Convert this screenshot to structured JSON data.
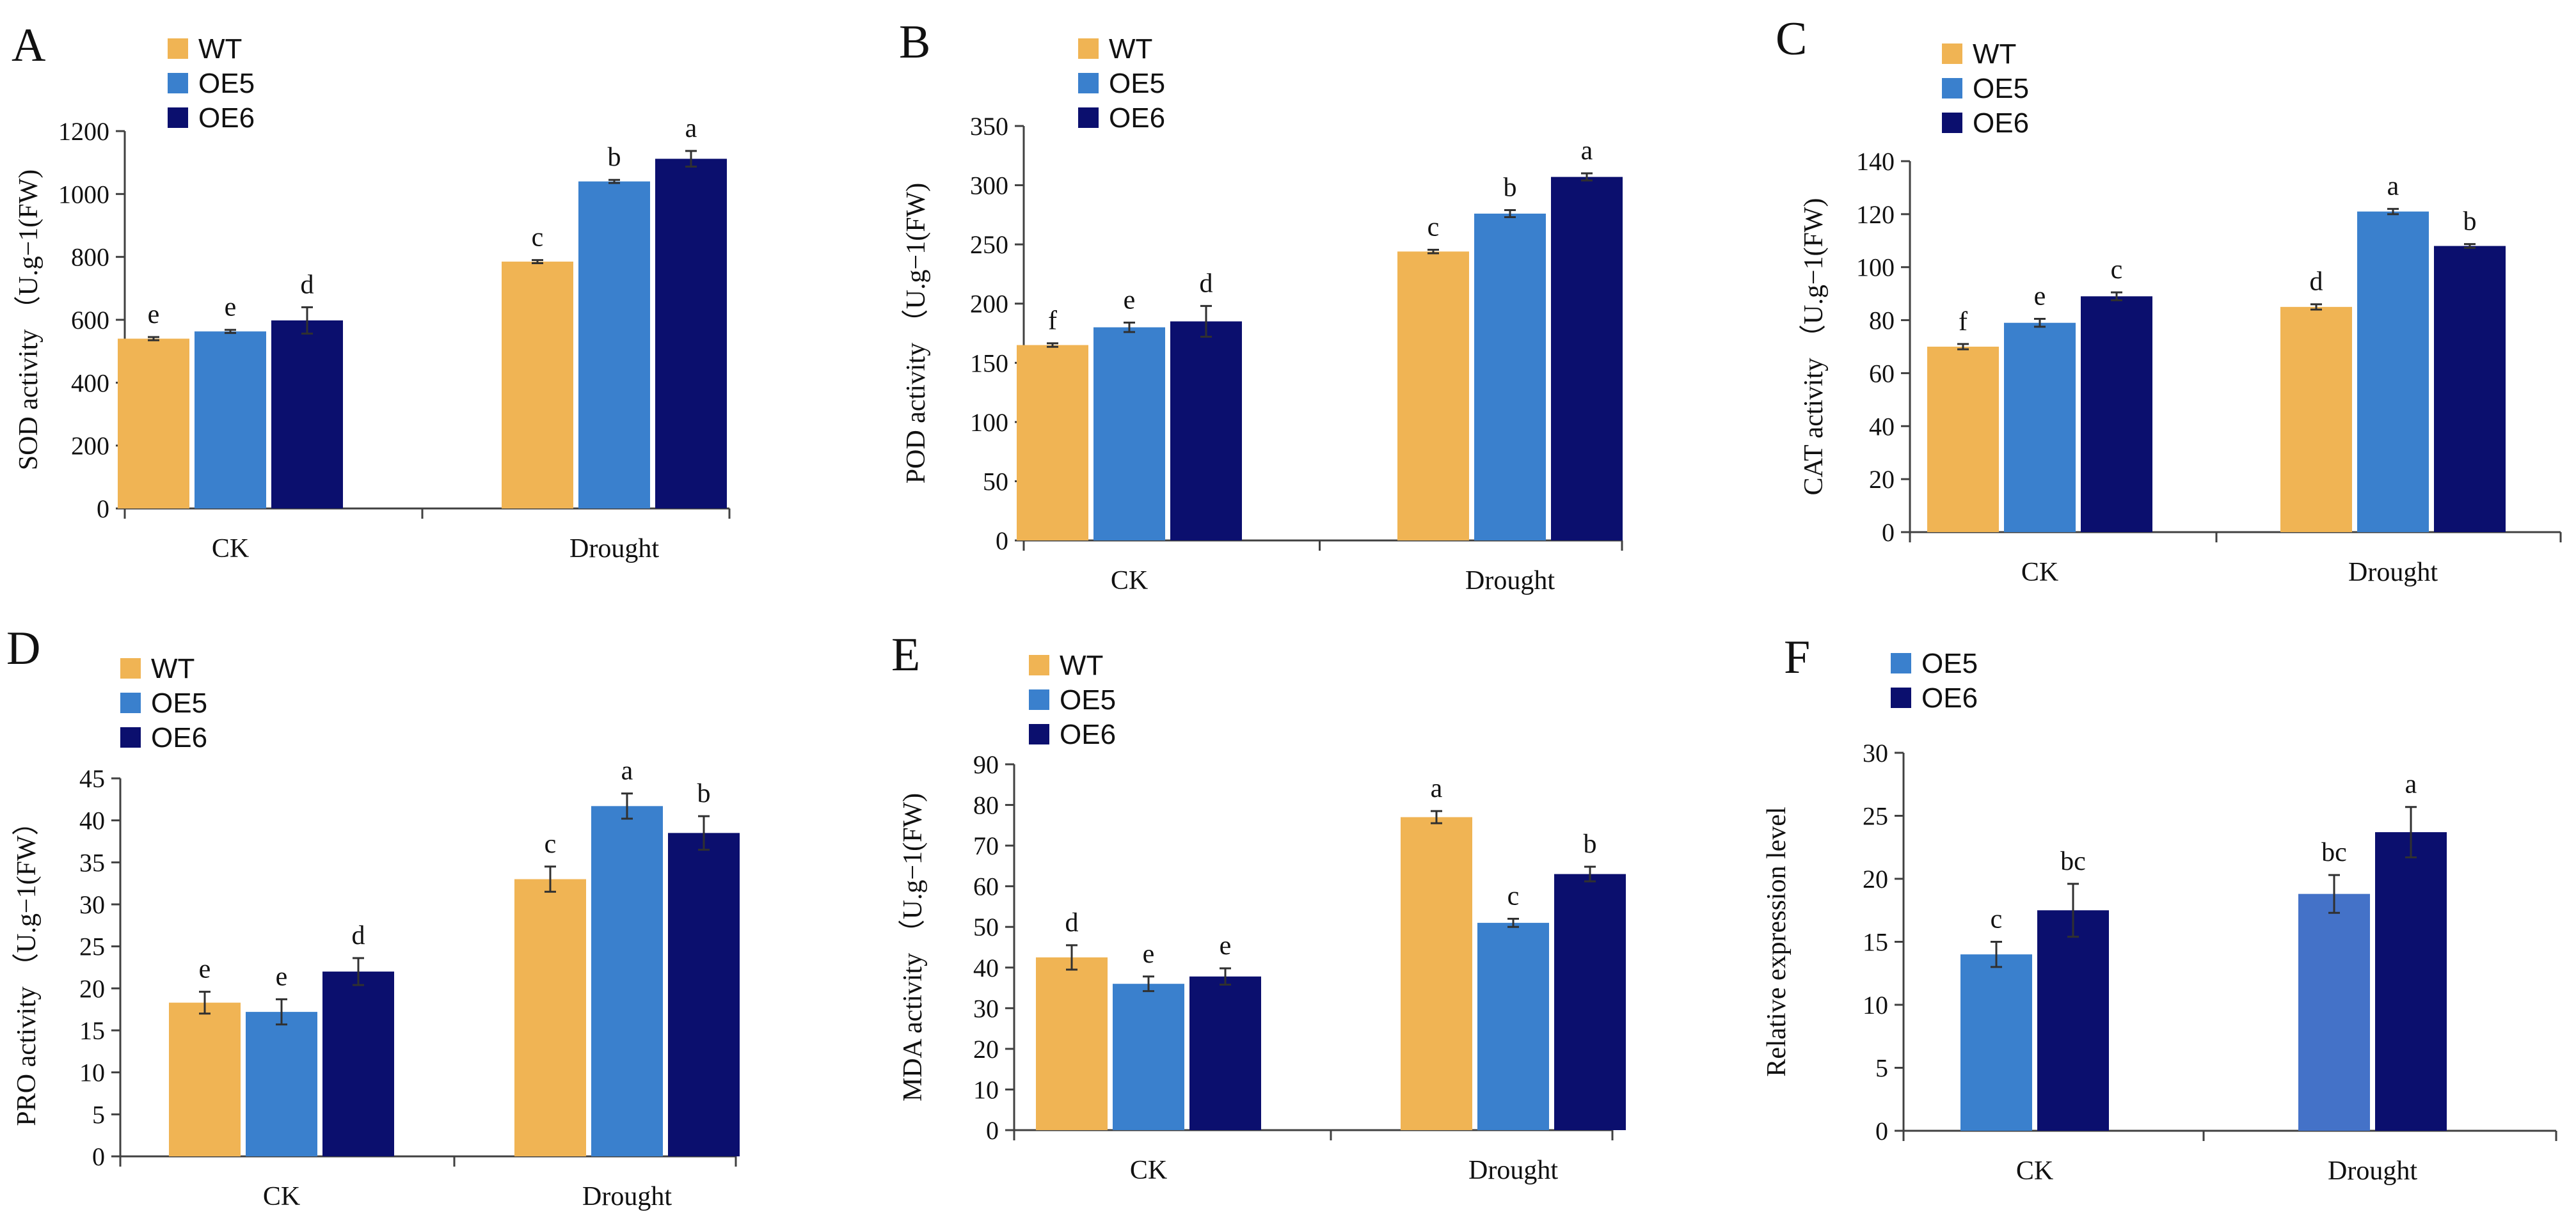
{
  "colors": {
    "WT": "#F0B454",
    "OE5": "#3A80CD",
    "OE6": "#0B0F6E",
    "OE5_F_drought": "#4472C8",
    "axis": "#404040",
    "error": "#303030"
  },
  "chart_data": [
    {
      "panel": "A",
      "type": "bar",
      "ylabel": "SOD activity （U.g−1(FW)",
      "ylim": [
        0,
        1200
      ],
      "ytick_step": 200,
      "categories": [
        "CK",
        "Drought"
      ],
      "series": [
        {
          "name": "WT",
          "values": [
            540,
            785
          ],
          "errors": [
            5,
            5
          ],
          "labels": [
            "e",
            "c"
          ]
        },
        {
          "name": "OE5",
          "values": [
            563,
            1040
          ],
          "errors": [
            5,
            5
          ],
          "labels": [
            "e",
            "b"
          ]
        },
        {
          "name": "OE6",
          "values": [
            598,
            1112
          ],
          "errors": [
            42,
            25
          ],
          "labels": [
            "d",
            "a"
          ]
        }
      ],
      "legend": [
        "WT",
        "OE5",
        "OE6"
      ]
    },
    {
      "panel": "B",
      "type": "bar",
      "ylabel": "POD activity （U.g−1(FW)",
      "ylim": [
        0,
        350
      ],
      "ytick_step": 50,
      "categories": [
        "CK",
        "Drought"
      ],
      "series": [
        {
          "name": "WT",
          "values": [
            165,
            244
          ],
          "errors": [
            1.5,
            1.5
          ],
          "labels": [
            "f",
            "c"
          ]
        },
        {
          "name": "OE5",
          "values": [
            180,
            276
          ],
          "errors": [
            4,
            3
          ],
          "labels": [
            "e",
            "b"
          ]
        },
        {
          "name": "OE6",
          "values": [
            185,
            307
          ],
          "errors": [
            13,
            3
          ],
          "labels": [
            "d",
            "a"
          ]
        }
      ],
      "legend": [
        "WT",
        "OE5",
        "OE6"
      ]
    },
    {
      "panel": "C",
      "type": "bar",
      "ylabel": "CAT activity （U.g−1(FW)",
      "ylim": [
        0,
        140
      ],
      "ytick_step": 20,
      "categories": [
        "CK",
        "Drought"
      ],
      "series": [
        {
          "name": "WT",
          "values": [
            70,
            85
          ],
          "errors": [
            1,
            1
          ],
          "labels": [
            "f",
            "d"
          ]
        },
        {
          "name": "OE5",
          "values": [
            79,
            121
          ],
          "errors": [
            1.5,
            1
          ],
          "labels": [
            "e",
            "a"
          ]
        },
        {
          "name": "OE6",
          "values": [
            89,
            108
          ],
          "errors": [
            1.5,
            0.7
          ],
          "labels": [
            "c",
            "b"
          ]
        }
      ],
      "legend": [
        "WT",
        "OE5",
        "OE6"
      ]
    },
    {
      "panel": "D",
      "type": "bar",
      "ylabel": "PRO activity （U.g−1(FW）",
      "ylim": [
        0,
        45
      ],
      "ytick_step": 5,
      "categories": [
        "CK",
        "Drought"
      ],
      "series": [
        {
          "name": "WT",
          "values": [
            18.3,
            33
          ],
          "errors": [
            1.3,
            1.5
          ],
          "labels": [
            "e",
            "c"
          ]
        },
        {
          "name": "OE5",
          "values": [
            17.2,
            41.7
          ],
          "errors": [
            1.5,
            1.5
          ],
          "labels": [
            "e",
            "a"
          ]
        },
        {
          "name": "OE6",
          "values": [
            22,
            38.5
          ],
          "errors": [
            1.6,
            2
          ],
          "labels": [
            "d",
            "b"
          ]
        }
      ],
      "legend": [
        "WT",
        "OE5",
        "OE6"
      ]
    },
    {
      "panel": "E",
      "type": "bar",
      "ylabel": "MDA activity （U.g−1(FW)",
      "ylim": [
        0,
        90
      ],
      "ytick_step": 10,
      "categories": [
        "CK",
        "Drought"
      ],
      "series": [
        {
          "name": "WT",
          "values": [
            42.5,
            77
          ],
          "errors": [
            3,
            1.5
          ],
          "labels": [
            "d",
            "a"
          ]
        },
        {
          "name": "OE5",
          "values": [
            36,
            51
          ],
          "errors": [
            1.8,
            1
          ],
          "labels": [
            "e",
            "c"
          ]
        },
        {
          "name": "OE6",
          "values": [
            37.8,
            63
          ],
          "errors": [
            2,
            1.8
          ],
          "labels": [
            "e",
            "b"
          ]
        }
      ],
      "legend": [
        "WT",
        "OE5",
        "OE6"
      ]
    },
    {
      "panel": "F",
      "type": "bar",
      "ylabel": "Relative expression level",
      "ylim": [
        0,
        30
      ],
      "ytick_step": 5,
      "categories": [
        "CK",
        "Drought"
      ],
      "series": [
        {
          "name": "OE5",
          "values": [
            14,
            18.8
          ],
          "errors": [
            1,
            1.5
          ],
          "labels": [
            "c",
            "bc"
          ]
        },
        {
          "name": "OE6",
          "values": [
            17.5,
            23.7
          ],
          "errors": [
            2.1,
            2
          ],
          "labels": [
            "bc",
            "a"
          ]
        }
      ],
      "legend": [
        "OE5",
        "OE6"
      ]
    }
  ]
}
